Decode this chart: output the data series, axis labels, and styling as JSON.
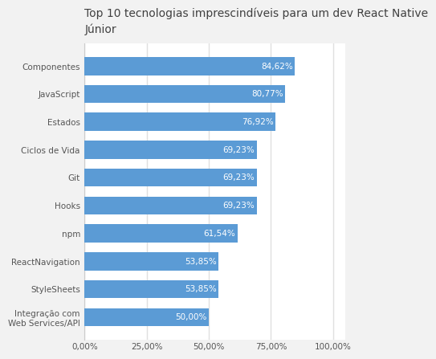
{
  "title": "Top 10 tecnologias imprescindíveis para um dev React Native\nJúnior",
  "categories": [
    "Componentes",
    "JavaScript",
    "Estados",
    "Ciclos de Vida",
    "Git",
    "Hooks",
    "npm",
    "ReactNavigation",
    "StyleSheets",
    "Integração com\nWeb Services/API"
  ],
  "values": [
    84.62,
    80.77,
    76.92,
    69.23,
    69.23,
    69.23,
    61.54,
    53.85,
    53.85,
    50.0
  ],
  "labels": [
    "84,62%",
    "80,77%",
    "76,92%",
    "69,23%",
    "69,23%",
    "69,23%",
    "61,54%",
    "53,85%",
    "53,85%",
    "50,00%"
  ],
  "bar_color": "#5B9BD5",
  "figure_bg": "#F2F2F2",
  "axes_bg": "#FFFFFF",
  "title_fontsize": 10,
  "label_fontsize": 7.5,
  "tick_fontsize": 7.5,
  "bar_label_fontsize": 7.5,
  "xlim": [
    0,
    105
  ],
  "xticks": [
    0,
    25,
    50,
    75,
    100
  ],
  "xtick_labels": [
    "0,00%",
    "25,00%",
    "50,00%",
    "75,00%",
    "100,00%"
  ],
  "title_color": "#404040",
  "label_color": "#555555",
  "tick_color": "#555555"
}
